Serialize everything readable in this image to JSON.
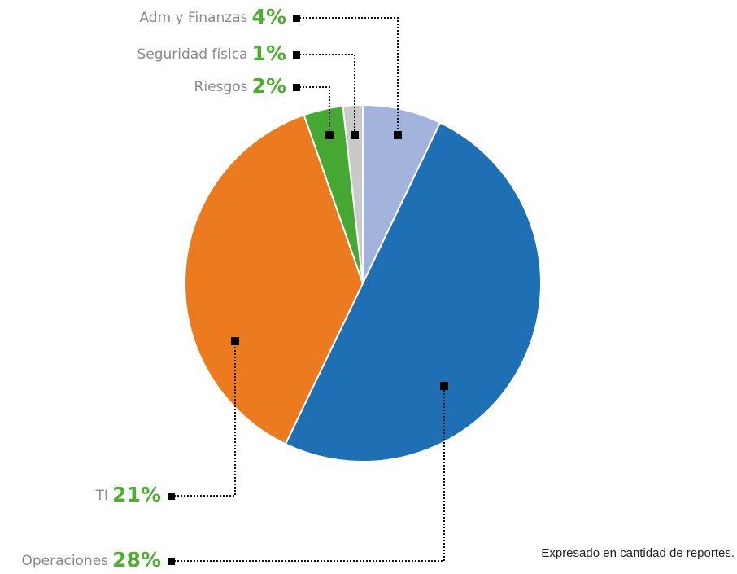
{
  "chart_data": {
    "type": "pie",
    "categories": [
      "Adm y Finanzas",
      "Operaciones",
      "TI",
      "Riesgos",
      "Seguridad física"
    ],
    "values": [
      4,
      28,
      21,
      2,
      1
    ],
    "value_labels": [
      "4%",
      "28%",
      "21%",
      "2%",
      "1%"
    ],
    "colors": [
      "#a2b4dc",
      "#1f6fb4",
      "#ec7a1f",
      "#45a832",
      "#c9c9c9"
    ],
    "annotation": "Expresado en cantidad de reportes."
  }
}
